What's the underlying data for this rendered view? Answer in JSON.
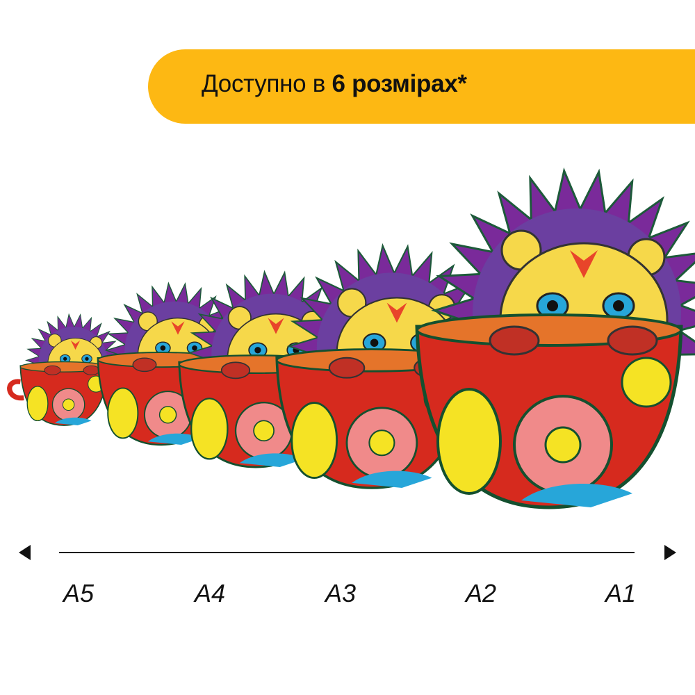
{
  "banner": {
    "text_regular": "Доступно в ",
    "text_bold": "6 розмірах*",
    "color": "#fdb813"
  },
  "illustration": {
    "subject": "hedgehog-in-cup",
    "colors": {
      "cup": "#d62a1e",
      "cup_pattern": "#f5e324",
      "accent_blue": "#27a6d9",
      "spikes": "#7a2a9a",
      "face": "#f6d84a"
    }
  },
  "scale": {
    "labels": [
      "A5",
      "A4",
      "A3",
      "A2",
      "A1"
    ]
  }
}
